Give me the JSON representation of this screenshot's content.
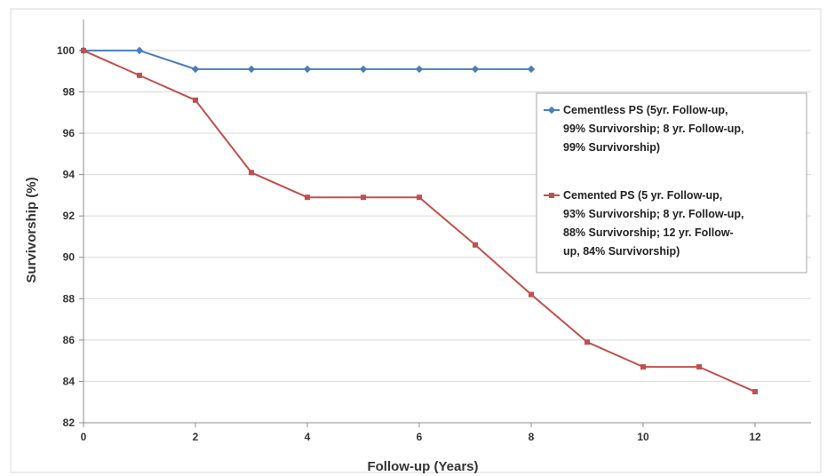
{
  "chart_data": {
    "type": "line",
    "title": "",
    "xlabel": "Follow-up (Years)",
    "ylabel": "Survivorship (%)",
    "xlim": [
      0,
      13
    ],
    "ylim": [
      82,
      101.5
    ],
    "x_ticks": [
      "0",
      "2",
      "4",
      "6",
      "8",
      "10",
      "12"
    ],
    "y_ticks": [
      "82",
      "84",
      "86",
      "88",
      "90",
      "92",
      "94",
      "96",
      "98",
      "100"
    ],
    "grid": "horizontal",
    "legend_position": "right",
    "series": [
      {
        "name": "Cementless PS (5yr. Follow-up, 99% Survivorship; 8 yr. Follow-up, 99% Survivorship)",
        "legend_lines": [
          "Cementless PS (5yr. Follow-up,",
          "99% Survivorship; 8 yr. Follow-up,",
          "99% Survivorship)"
        ],
        "color": "#4A7EBB",
        "x": [
          0,
          1,
          2,
          3,
          4,
          5,
          6,
          7,
          8
        ],
        "y": [
          100,
          100,
          99.1,
          99.1,
          99.1,
          99.1,
          99.1,
          99.1,
          99.1
        ]
      },
      {
        "name": "Cemented PS (5 yr. Follow-up, 93% Survivorship; 8 yr. Follow-up, 88% Survivorship; 12 yr. Follow-up, 84% Survivorship)",
        "legend_lines": [
          "Cemented PS (5 yr. Follow-up,",
          "93% Survivorship; 8 yr. Follow-up,",
          "88% Survivorship; 12 yr. Follow-",
          "up, 84% Survivorship)"
        ],
        "color": "#C0504D",
        "x": [
          0,
          1,
          2,
          3,
          4,
          5,
          6,
          7,
          8,
          9,
          10,
          11,
          12
        ],
        "y": [
          100,
          98.8,
          97.6,
          94.1,
          92.9,
          92.9,
          92.9,
          90.6,
          88.2,
          85.9,
          84.7,
          84.7,
          83.5
        ]
      }
    ]
  }
}
